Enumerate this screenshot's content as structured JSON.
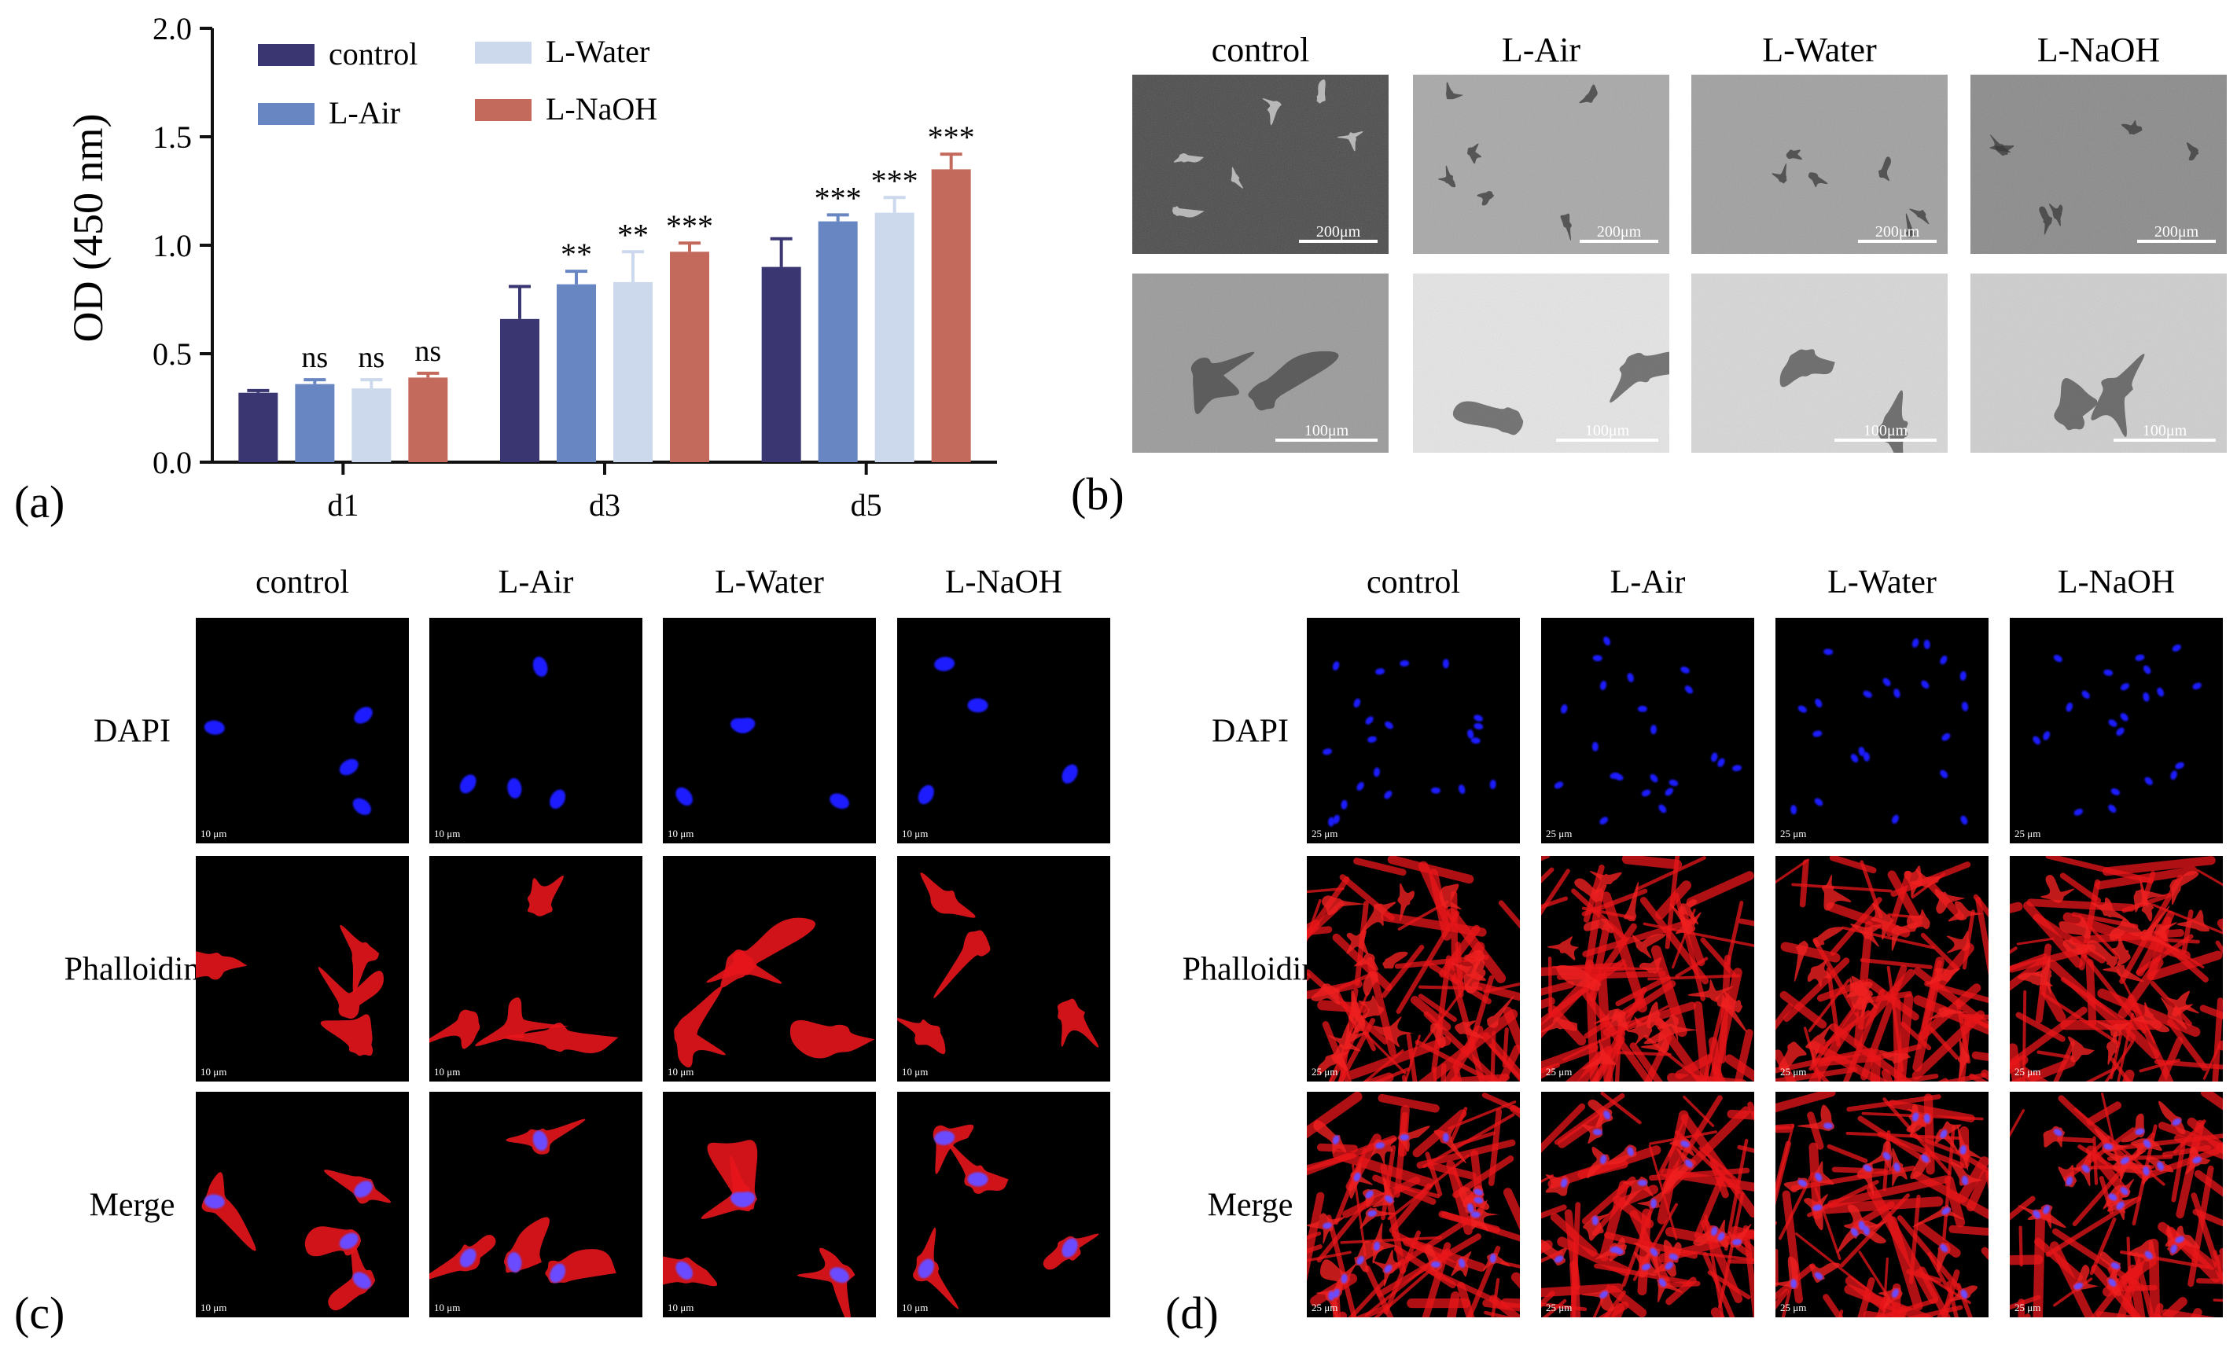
{
  "panels": {
    "a": {
      "label": "(a)",
      "chart_data": {
        "type": "bar",
        "ylabel": "OD (450 nm)",
        "xlabel": "",
        "ylim": [
          0.0,
          2.0
        ],
        "yticks": [
          "0.0",
          "0.5",
          "1.0",
          "1.5",
          "2.0"
        ],
        "categories": [
          "d1",
          "d3",
          "d5"
        ],
        "series": [
          {
            "name": "control",
            "color": "#3a3672",
            "values": [
              0.32,
              0.66,
              0.9
            ],
            "errors": [
              0.01,
              0.15,
              0.13
            ]
          },
          {
            "name": "L-Air",
            "color": "#6786c2",
            "values": [
              0.36,
              0.82,
              1.11
            ],
            "errors": [
              0.02,
              0.06,
              0.03
            ]
          },
          {
            "name": "L-Water",
            "color": "#ccd9ec",
            "values": [
              0.34,
              0.83,
              1.15
            ],
            "errors": [
              0.04,
              0.14,
              0.07
            ]
          },
          {
            "name": "L-NaOH",
            "color": "#c46a5c",
            "values": [
              0.39,
              0.97,
              1.35
            ],
            "errors": [
              0.02,
              0.04,
              0.07
            ]
          }
        ],
        "significance": [
          [
            "",
            "ns",
            "ns",
            "ns"
          ],
          [
            "",
            "**",
            "**",
            "***"
          ],
          [
            "",
            "***",
            "***",
            "***"
          ]
        ],
        "legend_position": "top-left",
        "grid": false
      }
    },
    "b": {
      "label": "(b)",
      "columns": [
        "control",
        "L-Air",
        "L-Water",
        "L-NaOH"
      ],
      "rows": [
        {
          "scale": "200μm"
        },
        {
          "scale": "100μm"
        }
      ]
    },
    "c": {
      "label": "(c)",
      "columns": [
        "control",
        "L-Air",
        "L-Water",
        "L-NaOH"
      ],
      "rows": [
        {
          "label": "DAPI",
          "stain": "dapi"
        },
        {
          "label": "Phalloidin",
          "stain": "phalloidin"
        },
        {
          "label": "Merge",
          "stain": "merge"
        }
      ],
      "scale": "10 μm"
    },
    "d": {
      "label": "(d)",
      "columns": [
        "control",
        "L-Air",
        "L-Water",
        "L-NaOH"
      ],
      "rows": [
        {
          "label": "DAPI",
          "stain": "dapi"
        },
        {
          "label": "Phalloidin",
          "stain": "phalloidin"
        },
        {
          "label": "Merge",
          "stain": "merge"
        }
      ],
      "scale": "25 μm"
    }
  }
}
